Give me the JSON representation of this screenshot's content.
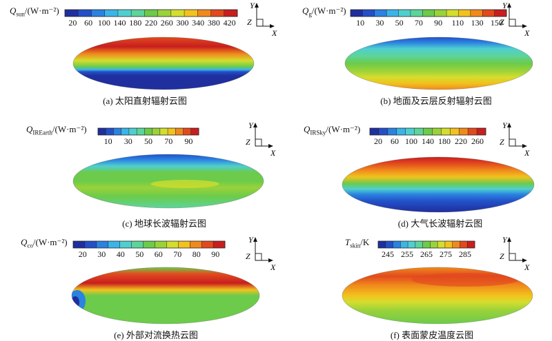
{
  "panels": [
    {
      "id": "a",
      "label_main": "Q",
      "label_sub": "sun",
      "label_unit": "/(W·m⁻²)",
      "ticks": [
        "20",
        "60",
        "100",
        "140",
        "180",
        "220",
        "260",
        "300",
        "340",
        "380",
        "420"
      ],
      "caption": "(a) 太阳直射辐射云图",
      "field": "sun"
    },
    {
      "id": "b",
      "label_main": "Q",
      "label_sub": "g",
      "label_unit": "/(W·m⁻²)",
      "ticks": [
        "10",
        "30",
        "50",
        "70",
        "90",
        "110",
        "130",
        "150"
      ],
      "caption": "(b) 地面及云层反射辐射云图",
      "field": "reflect"
    },
    {
      "id": "c",
      "label_main": "Q",
      "label_sub": "IREarth",
      "label_unit": "/(W·m⁻²)",
      "ticks": [
        "10",
        "30",
        "50",
        "70",
        "90"
      ],
      "caption": "(c) 地球长波辐射云图",
      "field": "earth"
    },
    {
      "id": "d",
      "label_main": "Q",
      "label_sub": "IRSky",
      "label_unit": "/(W·m⁻²)",
      "ticks": [
        "20",
        "60",
        "100",
        "140",
        "180",
        "220",
        "260"
      ],
      "caption": "(d) 大气长波辐射云图",
      "field": "sky"
    },
    {
      "id": "e",
      "label_main": "Q",
      "label_sub": "co",
      "label_unit": "/(W·m⁻²)",
      "ticks": [
        "20",
        "30",
        "40",
        "50",
        "60",
        "70",
        "80",
        "90"
      ],
      "caption": "(e) 外部对流换热云图",
      "field": "conv"
    },
    {
      "id": "f",
      "label_main": "T",
      "label_sub": "skin",
      "label_unit": "/K",
      "ticks": [
        "245",
        "255",
        "265",
        "275",
        "285"
      ],
      "caption": "(f) 表面蒙皮温度云图",
      "field": "skin"
    }
  ],
  "axis_labels": {
    "y": "Y",
    "z": "Z",
    "x": "X"
  },
  "colormap": [
    "#1f2f9e",
    "#2350c8",
    "#2b82e0",
    "#3bb4e8",
    "#4fcfcf",
    "#5dd49a",
    "#6ccb4a",
    "#9ad23a",
    "#d3de2e",
    "#f2c21e",
    "#f08a1c",
    "#e24a1e",
    "#c81e1e"
  ]
}
